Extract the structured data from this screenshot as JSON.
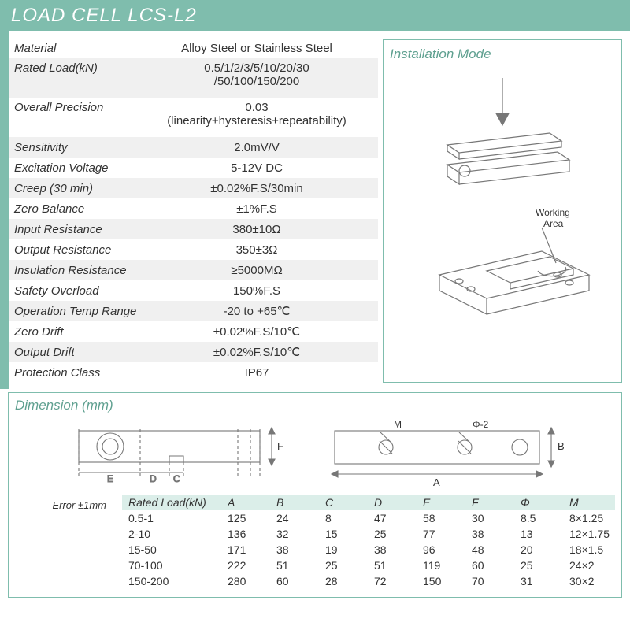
{
  "header": {
    "prefix": "LOAD CELL",
    "model": "LCS-L2"
  },
  "colors": {
    "accent": "#7fbdad",
    "accent_text": "#5fa090",
    "row_alt": "#f0f0f0",
    "header_bg": "#dbeee9",
    "text": "#333333",
    "bg": "#ffffff",
    "diagram_stroke": "#777777"
  },
  "specs": [
    {
      "label": "Material",
      "value": "Alloy Steel or Stainless Steel",
      "alt": false
    },
    {
      "label": "Rated Load(kN)",
      "value": "0.5/1/2/3/5/10/20/30\n/50/100/150/200",
      "alt": true,
      "multi": true
    },
    {
      "label": "Overall Precision",
      "value": "0.03\n(linearity+hysteresis+repeatability)",
      "alt": false,
      "multi": true
    },
    {
      "label": "Sensitivity",
      "value": "2.0mV/V",
      "alt": true
    },
    {
      "label": "Excitation Voltage",
      "value": "5-12V DC",
      "alt": false
    },
    {
      "label": "Creep (30 min)",
      "value": "±0.02%F.S/30min",
      "alt": true
    },
    {
      "label": "Zero Balance",
      "value": "±1%F.S",
      "alt": false
    },
    {
      "label": "Input Resistance",
      "value": "380±10Ω",
      "alt": true
    },
    {
      "label": "Output Resistance",
      "value": "350±3Ω",
      "alt": false
    },
    {
      "label": "Insulation Resistance",
      "value": "≥5000MΩ",
      "alt": true
    },
    {
      "label": "Safety Overload",
      "value": "150%F.S",
      "alt": false
    },
    {
      "label": "Operation Temp Range",
      "value": "-20 to +65℃",
      "alt": true
    },
    {
      "label": "Zero Drift",
      "value": "±0.02%F.S/10℃",
      "alt": false
    },
    {
      "label": "Output Drift",
      "value": "±0.02%F.S/10℃",
      "alt": true
    },
    {
      "label": "Protection Class",
      "value": "IP67",
      "alt": false
    }
  ],
  "install": {
    "title": "Installation Mode",
    "working_area": "Working\nArea"
  },
  "dimension": {
    "title": "Dimension (mm)",
    "error_note": "Error ±1mm",
    "labels": {
      "A": "A",
      "B": "B",
      "C": "C",
      "D": "D",
      "E": "E",
      "F": "F",
      "M": "M",
      "Phi": "Φ-2"
    },
    "columns": [
      "Rated Load(kN)",
      "A",
      "B",
      "C",
      "D",
      "E",
      "F",
      "Φ",
      "M"
    ],
    "rows": [
      [
        "0.5-1",
        "125",
        "24",
        "8",
        "47",
        "58",
        "30",
        "8.5",
        "8×1.25"
      ],
      [
        "2-10",
        "136",
        "32",
        "15",
        "25",
        "77",
        "38",
        "13",
        "12×1.75"
      ],
      [
        "15-50",
        "171",
        "38",
        "19",
        "38",
        "96",
        "48",
        "20",
        "18×1.5"
      ],
      [
        "70-100",
        "222",
        "51",
        "25",
        "51",
        "119",
        "60",
        "25",
        "24×2"
      ],
      [
        "150-200",
        "280",
        "60",
        "28",
        "72",
        "150",
        "70",
        "31",
        "30×2"
      ]
    ]
  }
}
